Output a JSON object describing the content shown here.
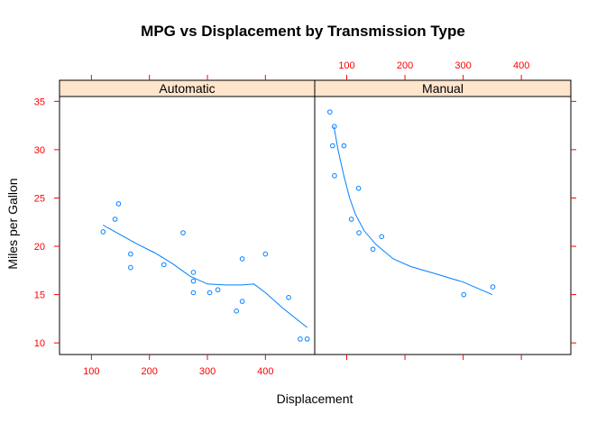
{
  "chart_data": {
    "type": "scatter",
    "title": "MPG vs Displacement by Transmission Type",
    "xlabel": "Displacement",
    "ylabel": "Miles per Gallon",
    "xlim": [
      45,
      485
    ],
    "ylim": [
      8.8,
      35.5
    ],
    "xticks": [
      100,
      200,
      300,
      400
    ],
    "yticks": [
      10,
      15,
      20,
      25,
      30,
      35
    ],
    "colors": {
      "points": "#0080ff",
      "line": "#0080ff",
      "ticks": "#ff0000",
      "strip_bg": "#ffe5cc"
    },
    "panels": [
      {
        "name": "Automatic",
        "points": [
          {
            "x": 120.1,
            "y": 21.5
          },
          {
            "x": 140.8,
            "y": 22.8
          },
          {
            "x": 146.7,
            "y": 24.4
          },
          {
            "x": 167.6,
            "y": 19.2
          },
          {
            "x": 167.6,
            "y": 17.8
          },
          {
            "x": 225.0,
            "y": 18.1
          },
          {
            "x": 258.0,
            "y": 21.4
          },
          {
            "x": 275.8,
            "y": 16.4
          },
          {
            "x": 275.8,
            "y": 17.3
          },
          {
            "x": 275.8,
            "y": 15.2
          },
          {
            "x": 304.0,
            "y": 15.2
          },
          {
            "x": 318.0,
            "y": 15.5
          },
          {
            "x": 350.0,
            "y": 13.3
          },
          {
            "x": 360.0,
            "y": 18.7
          },
          {
            "x": 360.0,
            "y": 14.3
          },
          {
            "x": 400.0,
            "y": 19.2
          },
          {
            "x": 440.0,
            "y": 14.7
          },
          {
            "x": 460.0,
            "y": 10.4
          },
          {
            "x": 472.0,
            "y": 10.4
          }
        ],
        "smooth": [
          {
            "x": 120,
            "y": 22.2
          },
          {
            "x": 150,
            "y": 21.2
          },
          {
            "x": 180,
            "y": 20.2
          },
          {
            "x": 210,
            "y": 19.3
          },
          {
            "x": 240,
            "y": 18.2
          },
          {
            "x": 270,
            "y": 16.9
          },
          {
            "x": 300,
            "y": 16.1
          },
          {
            "x": 330,
            "y": 16.0
          },
          {
            "x": 360,
            "y": 16.0
          },
          {
            "x": 380,
            "y": 16.1
          },
          {
            "x": 400,
            "y": 15.2
          },
          {
            "x": 430,
            "y": 13.6
          },
          {
            "x": 472,
            "y": 11.6
          }
        ]
      },
      {
        "name": "Manual",
        "points": [
          {
            "x": 71.1,
            "y": 33.9
          },
          {
            "x": 75.7,
            "y": 30.4
          },
          {
            "x": 78.7,
            "y": 32.4
          },
          {
            "x": 79.0,
            "y": 27.3
          },
          {
            "x": 95.1,
            "y": 30.4
          },
          {
            "x": 108.0,
            "y": 22.8
          },
          {
            "x": 120.3,
            "y": 26.0
          },
          {
            "x": 121.0,
            "y": 21.4
          },
          {
            "x": 145.0,
            "y": 19.7
          },
          {
            "x": 160.0,
            "y": 21.0
          },
          {
            "x": 301.0,
            "y": 15.0
          },
          {
            "x": 351.0,
            "y": 15.8
          }
        ],
        "smooth": [
          {
            "x": 78,
            "y": 32.4
          },
          {
            "x": 85,
            "y": 30.0
          },
          {
            "x": 95,
            "y": 27.3
          },
          {
            "x": 105,
            "y": 25.0
          },
          {
            "x": 115,
            "y": 23.3
          },
          {
            "x": 130,
            "y": 21.6
          },
          {
            "x": 150,
            "y": 20.2
          },
          {
            "x": 180,
            "y": 18.7
          },
          {
            "x": 210,
            "y": 17.9
          },
          {
            "x": 250,
            "y": 17.2
          },
          {
            "x": 300,
            "y": 16.3
          },
          {
            "x": 350,
            "y": 15.0
          }
        ]
      }
    ]
  }
}
